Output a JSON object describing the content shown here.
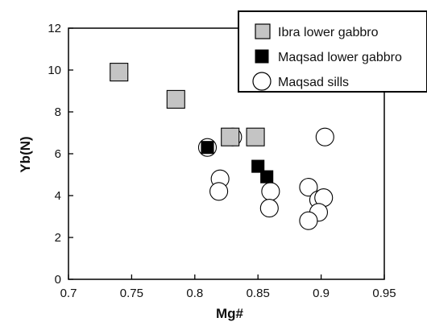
{
  "chart_data": {
    "type": "scatter",
    "xlabel": "Mg#",
    "ylabel": "Yb(N)",
    "xlim": [
      0.7,
      0.95
    ],
    "ylim": [
      0,
      12
    ],
    "x_ticks": [
      "0.7",
      "0.75",
      "0.8",
      "0.85",
      "0.9",
      "0.95"
    ],
    "y_ticks": [
      "0",
      "2",
      "4",
      "6",
      "8",
      "10",
      "12"
    ],
    "legend_position": "top-right",
    "series": [
      {
        "name": "Ibra lower gabbro",
        "marker": "square",
        "fill": "#c4c4c4",
        "points": [
          [
            0.74,
            9.9
          ],
          [
            0.785,
            8.6
          ],
          [
            0.828,
            6.8
          ],
          [
            0.848,
            6.8
          ]
        ]
      },
      {
        "name": "Maqsad lower gabbro",
        "marker": "square",
        "fill": "#000000",
        "points": [
          [
            0.81,
            6.3
          ],
          [
            0.85,
            5.4
          ],
          [
            0.857,
            4.9
          ]
        ]
      },
      {
        "name": "Maqsad sills",
        "marker": "circle",
        "fill": "#ffffff",
        "points": [
          [
            0.81,
            6.3
          ],
          [
            0.83,
            6.8
          ],
          [
            0.82,
            4.8
          ],
          [
            0.819,
            4.2
          ],
          [
            0.86,
            4.2
          ],
          [
            0.859,
            3.4
          ],
          [
            0.89,
            4.4
          ],
          [
            0.898,
            3.8
          ],
          [
            0.902,
            3.9
          ],
          [
            0.898,
            3.2
          ],
          [
            0.89,
            2.8
          ],
          [
            0.903,
            6.8
          ]
        ]
      }
    ]
  }
}
